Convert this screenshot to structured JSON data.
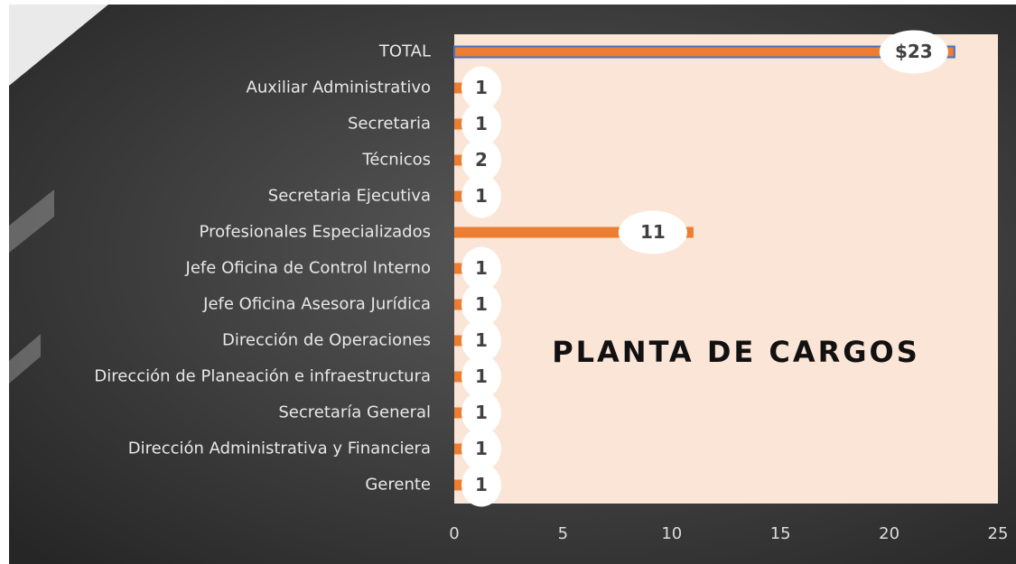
{
  "chart_data": {
    "type": "barh",
    "title": "PLANTA DE CARGOS",
    "categories": [
      "TOTAL",
      "Auxiliar Administrativo",
      "Secretaria",
      "Técnicos",
      "Secretaria Ejecutiva",
      "Profesionales Especializados",
      "Jefe Oficina de Control Interno",
      "Jefe Oficina Asesora Jurídica",
      "Dirección de Operaciones",
      "Dirección de Planeación e infraestructura",
      "Secretaría General",
      "Dirección Administrativa y Financiera",
      "Gerente"
    ],
    "values": [
      23,
      1,
      1,
      2,
      1,
      11,
      1,
      1,
      1,
      1,
      1,
      1,
      1
    ],
    "value_labels": [
      "$23",
      "1",
      "1",
      "2",
      "1",
      "11",
      "1",
      "1",
      "1",
      "1",
      "1",
      "1",
      "1"
    ],
    "color": "#ed7d31",
    "xlim": [
      0,
      25
    ],
    "xticks": [
      0,
      5,
      10,
      15,
      20,
      25
    ]
  }
}
